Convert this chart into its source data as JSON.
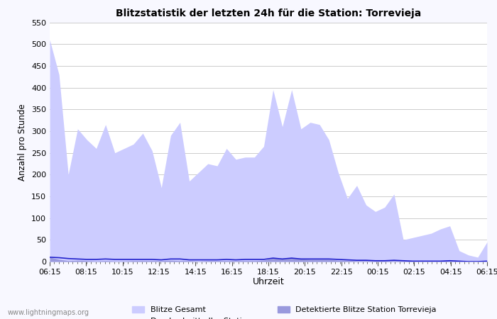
{
  "title": "Blitzstatistik der letzten 24h für die Station: Torrevieja",
  "xlabel": "Uhrzeit",
  "ylabel": "Anzahl pro Stunde",
  "ylim": [
    0,
    550
  ],
  "yticks": [
    0,
    50,
    100,
    150,
    200,
    250,
    300,
    350,
    400,
    450,
    500,
    550
  ],
  "xtick_labels": [
    "06:15",
    "08:15",
    "10:15",
    "12:15",
    "14:15",
    "16:15",
    "18:15",
    "20:15",
    "22:15",
    "00:15",
    "02:15",
    "04:15",
    "06:15"
  ],
  "background_color": "#f8f8ff",
  "plot_bg_color": "#ffffff",
  "grid_color": "#cccccc",
  "fill_gesamt_color": "#ccccff",
  "fill_station_color": "#9999dd",
  "line_avg_color": "#2222cc",
  "watermark": "www.lightningmaps.org",
  "blitze_gesamt": [
    510,
    430,
    200,
    305,
    280,
    260,
    315,
    250,
    260,
    270,
    295,
    255,
    170,
    290,
    320,
    185,
    205,
    225,
    220,
    260,
    235,
    240,
    240,
    265,
    395,
    310,
    395,
    305,
    320,
    315,
    280,
    205,
    145,
    175,
    130,
    115,
    125,
    155,
    50,
    55,
    60,
    65,
    75,
    82,
    25,
    15,
    10,
    45
  ],
  "blitze_station": [
    10,
    5,
    2,
    3,
    2,
    1,
    2,
    1,
    1,
    2,
    2,
    2,
    2,
    3,
    2,
    2,
    1,
    2,
    2,
    2,
    2,
    2,
    2,
    3,
    8,
    6,
    8,
    6,
    5,
    5,
    5,
    3,
    3,
    2,
    2,
    2,
    2,
    2,
    2,
    2,
    2,
    2,
    2,
    2,
    1,
    1,
    1,
    2
  ],
  "avg_stationen": [
    10,
    9,
    7,
    6,
    5,
    5,
    6,
    5,
    5,
    5,
    5,
    5,
    4,
    6,
    6,
    4,
    4,
    4,
    4,
    5,
    4,
    5,
    5,
    5,
    8,
    6,
    8,
    6,
    6,
    6,
    6,
    5,
    4,
    3,
    3,
    2,
    2,
    3,
    2,
    1,
    1,
    1,
    1,
    2,
    1,
    0,
    0,
    1
  ],
  "n_points": 48,
  "n_xticks_major": 13,
  "n_xticks_minor": 96
}
